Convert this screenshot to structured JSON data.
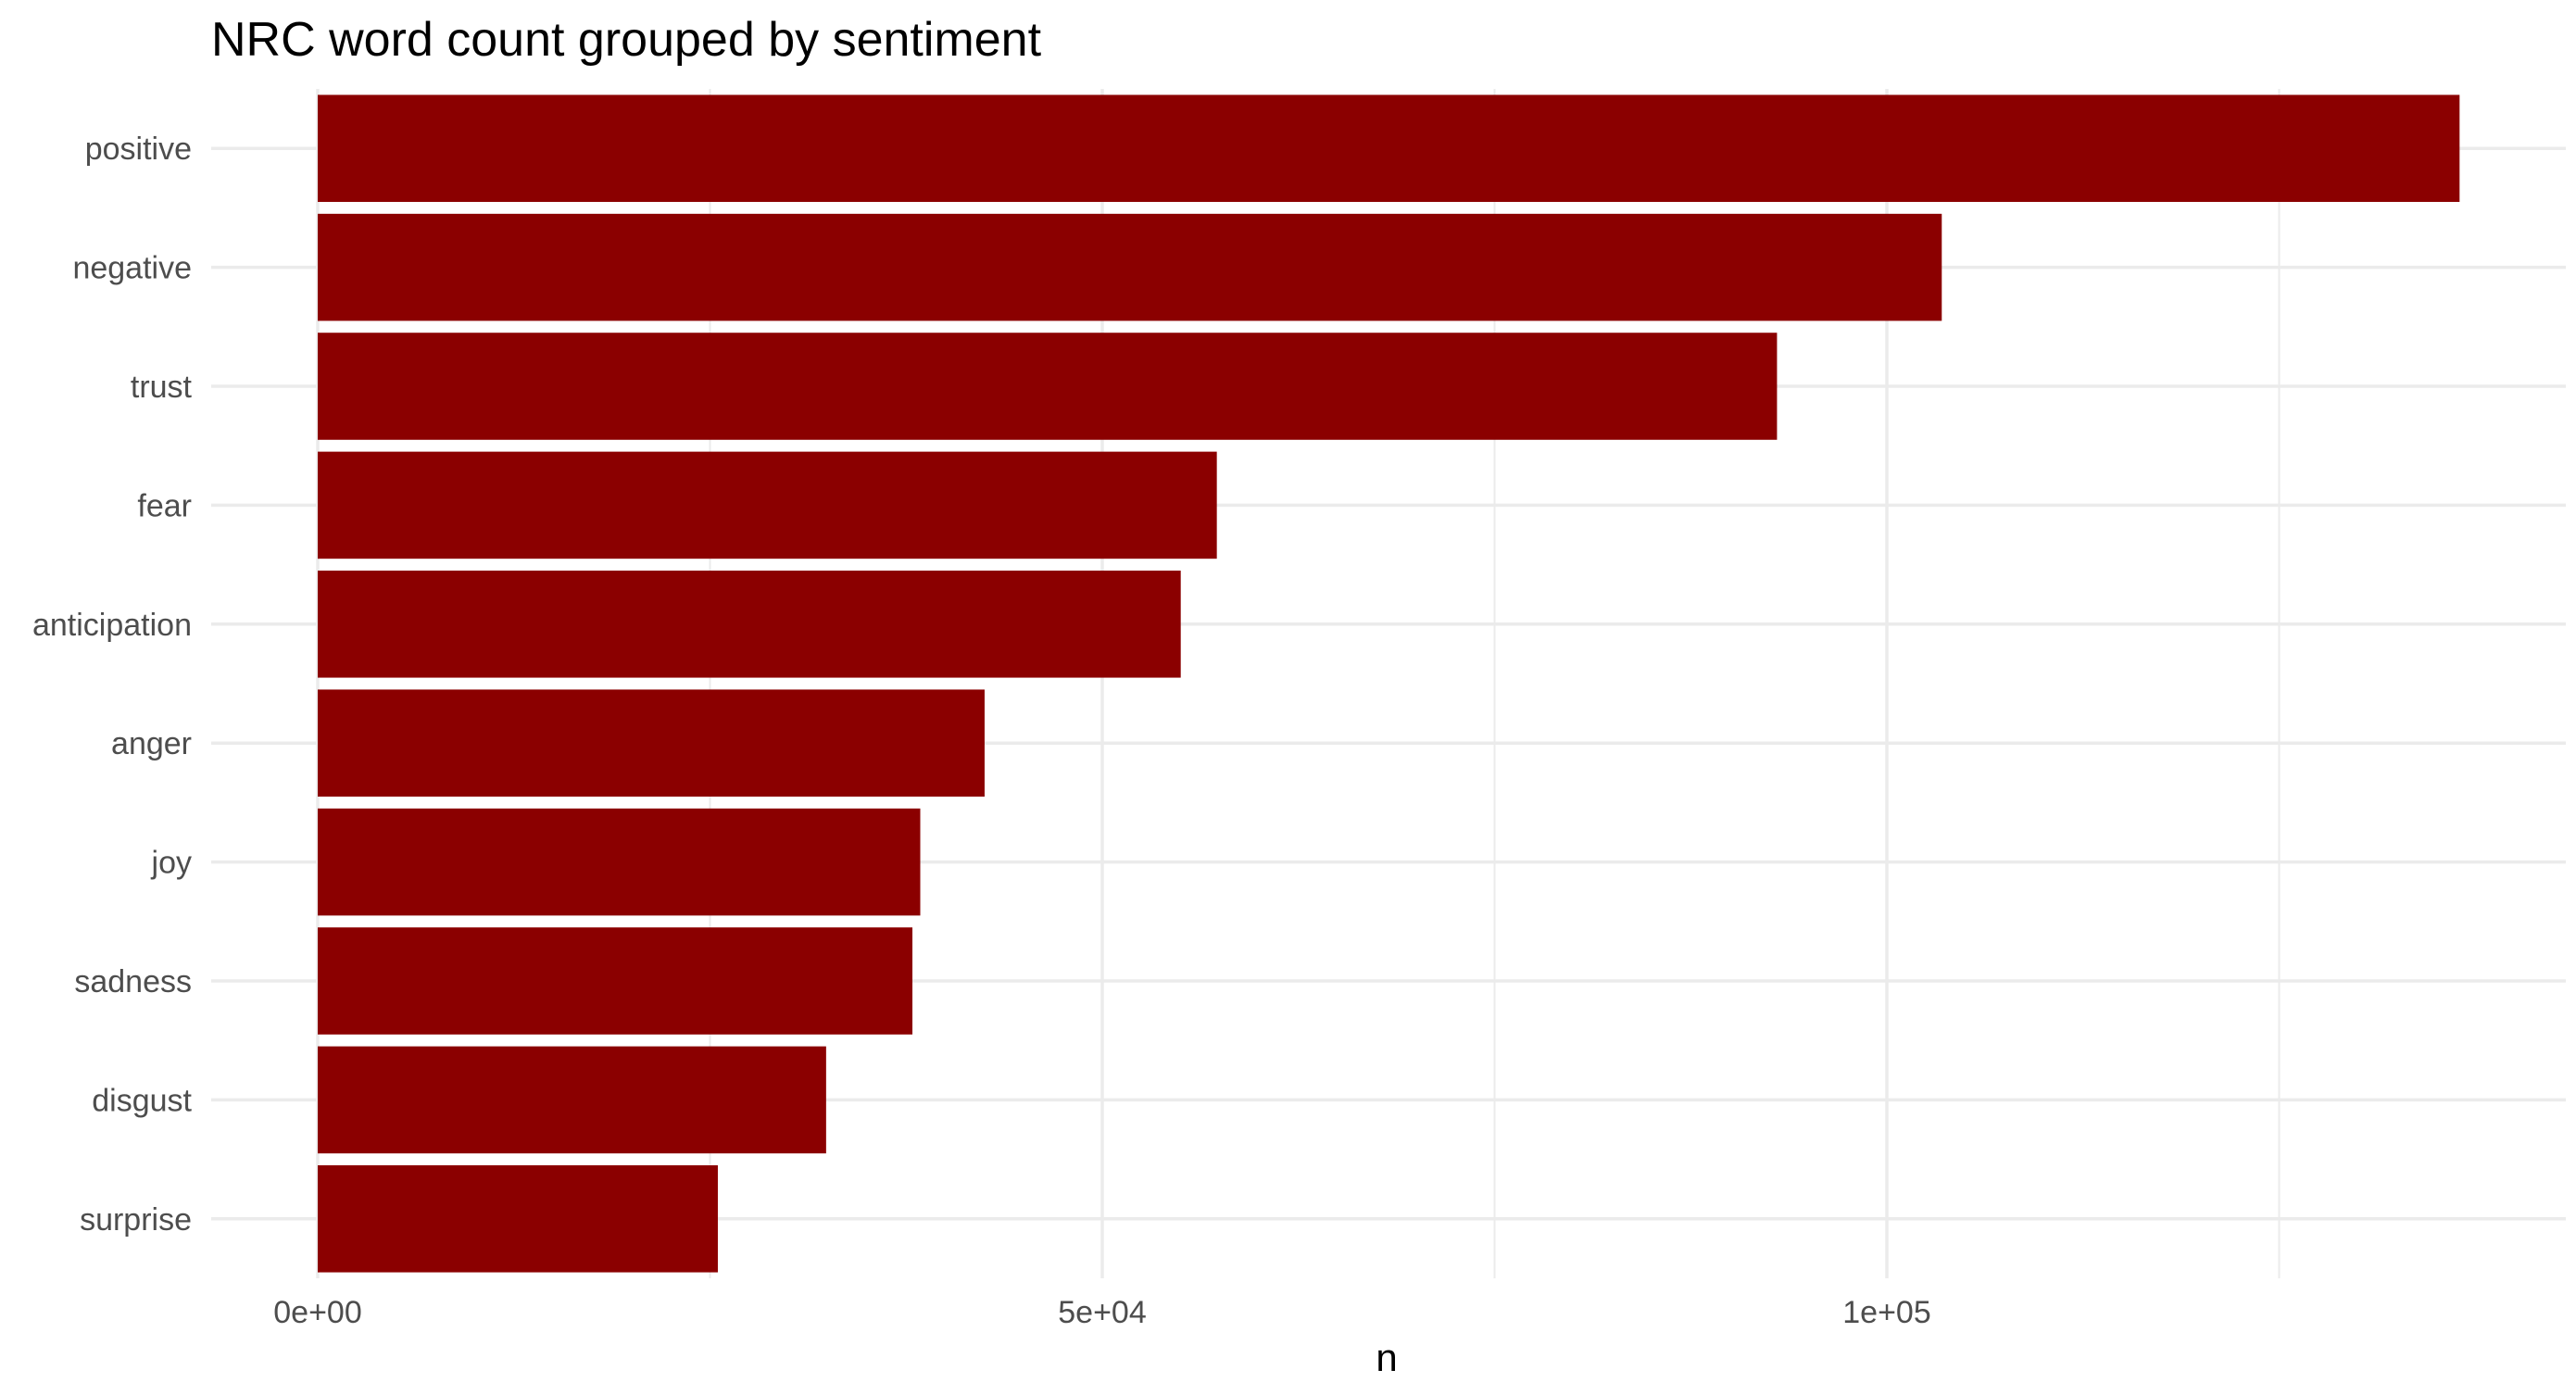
{
  "chart_data": {
    "type": "bar",
    "orientation": "horizontal",
    "title": "NRC word count grouped by sentiment",
    "xlabel": "n",
    "ylabel": "",
    "categories": [
      "positive",
      "negative",
      "trust",
      "fear",
      "anticipation",
      "anger",
      "joy",
      "sadness",
      "disgust",
      "surprise"
    ],
    "values": [
      136500,
      103500,
      93000,
      57300,
      55000,
      42500,
      38400,
      37900,
      32400,
      25500
    ],
    "xlim": [
      0,
      143000
    ],
    "x_ticks": [
      0,
      50000,
      100000
    ],
    "x_tick_labels": [
      "0e+00",
      "5e+04",
      "1e+05"
    ],
    "x_minor_ticks": [
      25000,
      75000,
      125000
    ],
    "grid": true,
    "bar_color": "#8b0000",
    "background": "#ffffff",
    "grid_color": "#ebebeb"
  }
}
